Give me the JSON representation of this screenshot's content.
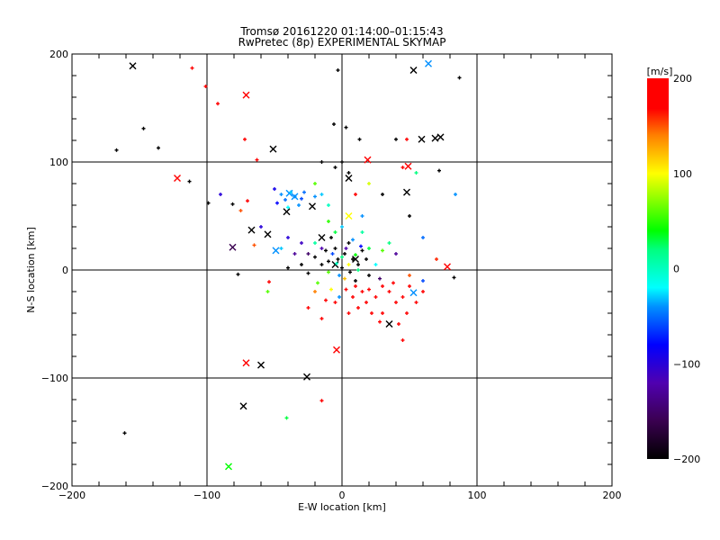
{
  "chart_data": {
    "type": "scatter",
    "title": "Tromsø 20161220 01:14:00–01:15:43",
    "subtitle": "RwPretec (8p) EXPERIMENTAL SKYMAP",
    "xlabel": "E-W location [km]",
    "ylabel": "N-S location [km]",
    "xlim": [
      -200,
      200
    ],
    "ylim": [
      -200,
      200
    ],
    "xticks": [
      -200,
      -100,
      0,
      100,
      200
    ],
    "yticks": [
      -200,
      -100,
      0,
      100,
      200
    ],
    "xtick_labels": [
      "−200",
      "−100",
      "0",
      "100",
      "200"
    ],
    "ytick_labels": [
      "−200",
      "−100",
      "0",
      "100",
      "200"
    ],
    "grid": true,
    "colorbar": {
      "unit": "[m/s]",
      "range": [
        -200,
        200
      ],
      "ticks": [
        200,
        100,
        0,
        -100,
        -200
      ],
      "tick_labels": [
        "200",
        "100",
        "0",
        "−100",
        "−200"
      ],
      "colormap": "black-purple-blue-cyan-green-yellow-red"
    },
    "series": [
      {
        "name": "cross-markers",
        "marker": "x",
        "points": [
          [
            -155,
            189,
            -200
          ],
          [
            -71,
            162,
            200
          ],
          [
            53,
            185,
            -200
          ],
          [
            64,
            191,
            -40
          ],
          [
            -51,
            112,
            -200
          ],
          [
            -122,
            85,
            200
          ],
          [
            59,
            121,
            -200
          ],
          [
            69,
            122,
            -200
          ],
          [
            73,
            123,
            -200
          ],
          [
            19,
            102,
            200
          ],
          [
            49,
            96,
            200
          ],
          [
            48,
            72,
            -200
          ],
          [
            -39,
            71,
            -40
          ],
          [
            -35,
            68,
            -40
          ],
          [
            -41,
            54,
            -200
          ],
          [
            -22,
            59,
            -200
          ],
          [
            -67,
            37,
            -200
          ],
          [
            -55,
            33,
            -200
          ],
          [
            -81,
            21,
            -160
          ],
          [
            -49,
            18,
            -40
          ],
          [
            78,
            3,
            200
          ],
          [
            53,
            -21,
            -40
          ],
          [
            35,
            -50,
            -200
          ],
          [
            -4,
            -74,
            200
          ],
          [
            -71,
            -86,
            200
          ],
          [
            -60,
            -88,
            -200
          ],
          [
            -26,
            -99,
            -200
          ],
          [
            -73,
            -126,
            -200
          ],
          [
            -84,
            -182,
            40
          ],
          [
            5,
            85,
            -200
          ],
          [
            5,
            50,
            100
          ],
          [
            -15,
            30,
            -200
          ],
          [
            10,
            10,
            -200
          ],
          [
            -5,
            5,
            -200
          ]
        ]
      },
      {
        "name": "plus-markers",
        "marker": "+",
        "points": [
          [
            -111,
            187,
            200
          ],
          [
            -101,
            170,
            180
          ],
          [
            -92,
            154,
            190
          ],
          [
            -147,
            131,
            -200
          ],
          [
            -167,
            111,
            -200
          ],
          [
            -136,
            113,
            -200
          ],
          [
            -113,
            82,
            -200
          ],
          [
            -81,
            61,
            -200
          ],
          [
            -99,
            62,
            -200
          ],
          [
            -72,
            121,
            200
          ],
          [
            -63,
            102,
            180
          ],
          [
            -3,
            185,
            -200
          ],
          [
            87,
            178,
            -200
          ],
          [
            -6,
            135,
            -200
          ],
          [
            3,
            132,
            -200
          ],
          [
            13,
            121,
            -200
          ],
          [
            40,
            121,
            -200
          ],
          [
            48,
            121,
            200
          ],
          [
            84,
            70,
            -40
          ],
          [
            72,
            92,
            -200
          ],
          [
            -161,
            -151,
            -200
          ],
          [
            -41,
            -137,
            30
          ],
          [
            -15,
            -121,
            200
          ],
          [
            45,
            -65,
            200
          ],
          [
            83,
            -7,
            -200
          ],
          [
            -54,
            -11,
            200
          ],
          [
            -77,
            -4,
            -200
          ],
          [
            -70,
            64,
            190
          ],
          [
            -65,
            23,
            150
          ],
          [
            -5,
            20,
            -200
          ],
          [
            2,
            15,
            -200
          ],
          [
            8,
            10,
            -200
          ],
          [
            -10,
            8,
            -200
          ],
          [
            -15,
            5,
            -200
          ],
          [
            12,
            5,
            -200
          ],
          [
            -20,
            12,
            -200
          ],
          [
            5,
            25,
            -200
          ],
          [
            -8,
            30,
            -200
          ],
          [
            15,
            18,
            -200
          ],
          [
            -30,
            5,
            -200
          ],
          [
            -40,
            2,
            -200
          ],
          [
            -25,
            -3,
            -200
          ],
          [
            20,
            -5,
            -200
          ],
          [
            10,
            -10,
            -200
          ],
          [
            0,
            2,
            -200
          ],
          [
            -3,
            10,
            -200
          ],
          [
            6,
            -2,
            -200
          ],
          [
            -12,
            18,
            -200
          ],
          [
            18,
            10,
            -200
          ],
          [
            0,
            12,
            20
          ],
          [
            -4,
            6,
            0
          ],
          [
            3,
            20,
            -120
          ],
          [
            -7,
            15,
            -60
          ],
          [
            10,
            14,
            40
          ],
          [
            -15,
            20,
            -120
          ],
          [
            5,
            5,
            100
          ],
          [
            -10,
            -2,
            60
          ],
          [
            8,
            28,
            -40
          ],
          [
            -20,
            25,
            10
          ],
          [
            14,
            22,
            -80
          ],
          [
            2,
            -8,
            120
          ],
          [
            -2,
            -5,
            -40
          ],
          [
            12,
            0,
            20
          ],
          [
            -25,
            15,
            -150
          ],
          [
            20,
            20,
            30
          ],
          [
            25,
            5,
            -20
          ],
          [
            -30,
            25,
            -110
          ],
          [
            -35,
            15,
            -130
          ],
          [
            30,
            18,
            60
          ],
          [
            -5,
            35,
            30
          ],
          [
            0,
            40,
            -30
          ],
          [
            -10,
            45,
            50
          ],
          [
            15,
            35,
            10
          ],
          [
            35,
            25,
            20
          ],
          [
            -18,
            -12,
            60
          ],
          [
            -8,
            -18,
            100
          ],
          [
            -2,
            -25,
            -40
          ],
          [
            -40,
            30,
            -100
          ],
          [
            40,
            15,
            -130
          ],
          [
            -45,
            20,
            -30
          ],
          [
            28,
            -8,
            -150
          ],
          [
            10,
            -15,
            200
          ],
          [
            15,
            -20,
            190
          ],
          [
            20,
            -18,
            200
          ],
          [
            25,
            -25,
            180
          ],
          [
            8,
            -25,
            200
          ],
          [
            30,
            -15,
            200
          ],
          [
            35,
            -20,
            190
          ],
          [
            40,
            -30,
            200
          ],
          [
            45,
            -25,
            200
          ],
          [
            18,
            -30,
            200
          ],
          [
            12,
            -35,
            180
          ],
          [
            -5,
            -30,
            200
          ],
          [
            -12,
            -28,
            200
          ],
          [
            22,
            -40,
            200
          ],
          [
            30,
            -40,
            190
          ],
          [
            38,
            -12,
            200
          ],
          [
            50,
            -15,
            190
          ],
          [
            55,
            -30,
            200
          ],
          [
            48,
            -40,
            200
          ],
          [
            5,
            -40,
            190
          ],
          [
            -15,
            -45,
            200
          ],
          [
            -25,
            -35,
            200
          ],
          [
            60,
            -20,
            200
          ],
          [
            3,
            -18,
            200
          ],
          [
            28,
            -48,
            200
          ],
          [
            42,
            -50,
            170
          ],
          [
            -20,
            -20,
            140
          ],
          [
            50,
            -5,
            150
          ],
          [
            -45,
            70,
            -40
          ],
          [
            -42,
            65,
            -50
          ],
          [
            -38,
            72,
            -30
          ],
          [
            -35,
            68,
            -40
          ],
          [
            -30,
            66,
            -60
          ],
          [
            -48,
            62,
            -80
          ],
          [
            -32,
            60,
            -40
          ],
          [
            -40,
            58,
            -20
          ],
          [
            -28,
            72,
            -50
          ],
          [
            -20,
            68,
            -40
          ],
          [
            -50,
            75,
            -90
          ],
          [
            -15,
            70,
            -30
          ],
          [
            -5,
            95,
            -200
          ],
          [
            0,
            100,
            -200
          ],
          [
            5,
            90,
            -200
          ],
          [
            -10,
            60,
            0
          ],
          [
            10,
            70,
            180
          ],
          [
            20,
            80,
            90
          ],
          [
            30,
            70,
            -200
          ],
          [
            -60,
            40,
            -100
          ],
          [
            -75,
            55,
            150
          ],
          [
            50,
            50,
            -200
          ],
          [
            60,
            30,
            -50
          ],
          [
            70,
            10,
            160
          ],
          [
            -55,
            -20,
            60
          ],
          [
            45,
            95,
            190
          ],
          [
            55,
            90,
            20
          ],
          [
            -15,
            100,
            -200
          ],
          [
            -90,
            70,
            -100
          ],
          [
            15,
            50,
            -40
          ],
          [
            -20,
            80,
            60
          ],
          [
            60,
            -10,
            -60
          ]
        ]
      }
    ]
  }
}
